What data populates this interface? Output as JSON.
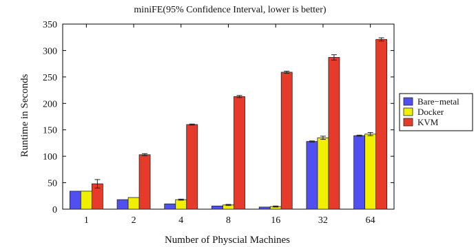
{
  "chart_data": {
    "type": "bar",
    "title": "miniFE(95% Confidence Interval, lower is better)",
    "xlabel": "Number of Physcial Machines",
    "ylabel": "Runtime in Seconds",
    "categories": [
      "1",
      "2",
      "4",
      "8",
      "16",
      "32",
      "64"
    ],
    "ylim": [
      0,
      350
    ],
    "yticks": [
      "0",
      "50",
      "100",
      "150",
      "200",
      "250",
      "300",
      "350"
    ],
    "grid": false,
    "legend_position": "right",
    "series": [
      {
        "name": "Bare−metal",
        "color": "#5050f0",
        "values": [
          34,
          18,
          10,
          6,
          4,
          128,
          139
        ],
        "errors": [
          0,
          0,
          0,
          0,
          0,
          1,
          1
        ]
      },
      {
        "name": "Docker",
        "color": "#f0f000",
        "values": [
          34,
          22,
          18,
          8,
          5,
          135,
          142
        ],
        "errors": [
          0,
          0,
          1,
          1,
          1,
          3,
          3
        ]
      },
      {
        "name": "KVM",
        "color": "#e63a2a",
        "values": [
          48,
          103,
          160,
          213,
          259,
          287,
          321
        ],
        "errors": [
          8,
          2,
          1,
          2,
          2,
          5,
          3
        ]
      }
    ]
  }
}
